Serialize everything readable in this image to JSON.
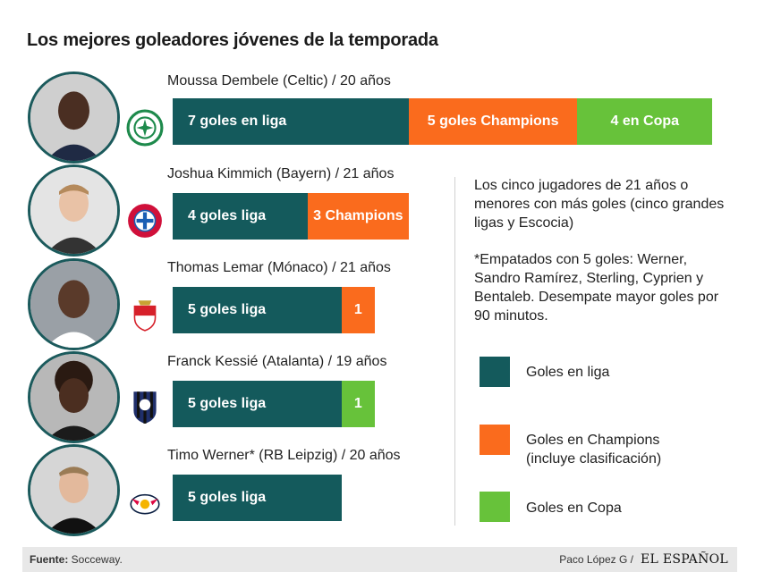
{
  "title": "Los mejores goleadores jóvenes de la temporada",
  "colors": {
    "liga": "#145a5c",
    "champions": "#fa6b1d",
    "copa": "#67c23a"
  },
  "players": [
    {
      "label": "Moussa Dembele (Celtic) / 20 años",
      "crest": "celtic-crest-icon",
      "avatar": "player-photo-dembele"
    },
    {
      "label": "Joshua Kimmich (Bayern) / 21 años",
      "crest": "bayern-crest-icon",
      "avatar": "player-photo-kimmich"
    },
    {
      "label": "Thomas Lemar (Mónaco) / 21 años",
      "crest": "monaco-crest-icon",
      "avatar": "player-photo-lemar"
    },
    {
      "label": "Franck Kessié (Atalanta) / 19 años",
      "crest": "atalanta-crest-icon",
      "avatar": "player-photo-kessie"
    },
    {
      "label": "Timo Werner* (RB Leipzig) / 20 años",
      "crest": "rb-leipzig-crest-icon",
      "avatar": "player-photo-werner"
    }
  ],
  "chart_data": {
    "type": "bar",
    "orientation": "horizontal",
    "stacked": true,
    "categories": [
      "Moussa Dembele",
      "Joshua Kimmich",
      "Thomas Lemar",
      "Franck Kessié",
      "Timo Werner"
    ],
    "series": [
      {
        "name": "Goles en liga",
        "values": [
          7,
          4,
          5,
          5,
          5
        ],
        "labels": [
          "7 goles en liga",
          "4 goles liga",
          "5 goles liga",
          "5 goles liga",
          "5 goles liga"
        ]
      },
      {
        "name": "Goles en Champions (incluye clasificación)",
        "values": [
          5,
          3,
          1,
          0,
          0
        ],
        "labels": [
          "5 goles Champions",
          "3 Champions",
          "1",
          "",
          ""
        ]
      },
      {
        "name": "Goles en Copa",
        "values": [
          4,
          0,
          0,
          1,
          0
        ],
        "labels": [
          "4 en Copa",
          "",
          "",
          "1",
          ""
        ]
      }
    ]
  },
  "note": {
    "paragraph1": "Los cinco jugadores de 21 años o menores con más goles (cinco grandes ligas y Escocia)",
    "paragraph2": "*Empatados con 5 goles: Werner, Sandro Ramírez, Sterling, Cyprien y Bentaleb. Desempate mayor goles por 90 minutos."
  },
  "legend": [
    {
      "label": "Goles en liga",
      "color": "#145a5c"
    },
    {
      "label": "Goles en Champions (incluye clasificación)",
      "color": "#fa6b1d"
    },
    {
      "label": "Goles en Copa",
      "color": "#67c23a"
    }
  ],
  "footer": {
    "source_label": "Fuente:",
    "source_value": " Socceway.",
    "author": "Paco López G /",
    "brand": "EL ESPAÑOL"
  }
}
